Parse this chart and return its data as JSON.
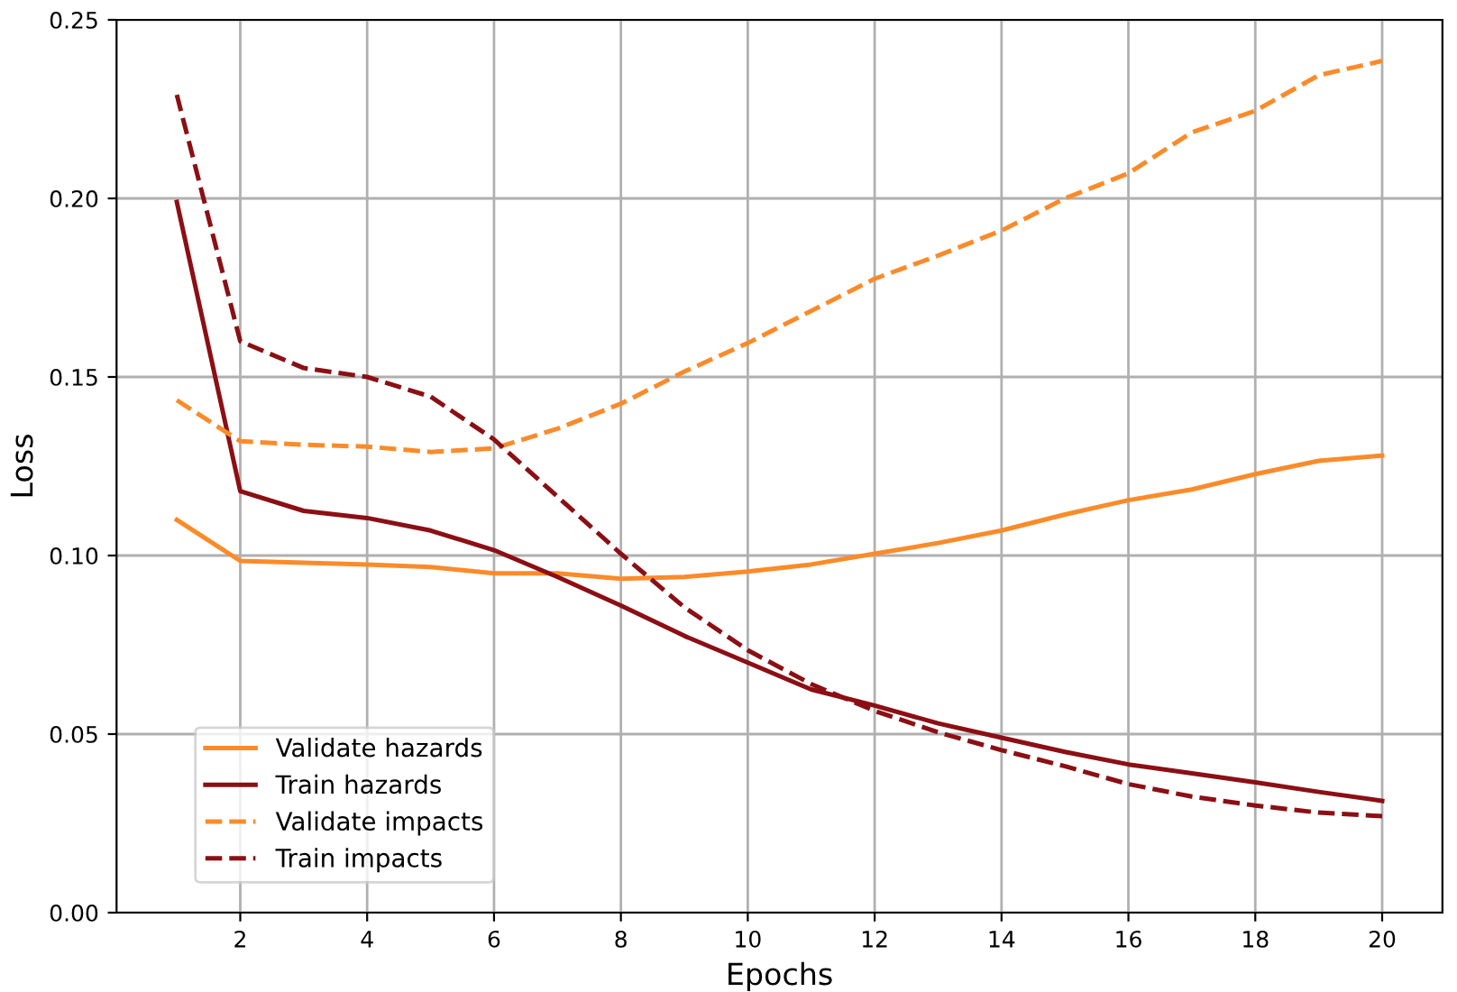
{
  "chart_data": {
    "type": "line",
    "xlabel": "Epochs",
    "ylabel": "Loss",
    "x": [
      1,
      2,
      3,
      4,
      5,
      6,
      7,
      8,
      9,
      10,
      11,
      12,
      13,
      14,
      15,
      16,
      17,
      18,
      19,
      20
    ],
    "xlim": [
      0.05,
      20.95
    ],
    "xticks": [
      2,
      4,
      6,
      8,
      10,
      12,
      14,
      16,
      18,
      20
    ],
    "ylim": [
      0,
      0.25
    ],
    "yticks": [
      {
        "value": 0,
        "label": "0.00"
      },
      {
        "value": 0.05,
        "label": "0.05"
      },
      {
        "value": 0.1,
        "label": "0.10"
      },
      {
        "value": 0.15,
        "label": "0.15"
      },
      {
        "value": 0.2,
        "label": "0.20"
      },
      {
        "value": 0.25,
        "label": "0.25"
      }
    ],
    "grid": true,
    "legend": "bottom left",
    "marker": "none",
    "series": [
      {
        "name": "Validate hazards",
        "color": "#fb8b2a",
        "line_style": "solid",
        "values": [
          0.11,
          0.0985,
          0.098,
          0.0975,
          0.0968,
          0.095,
          0.095,
          0.0935,
          0.094,
          0.0955,
          0.0975,
          0.1005,
          0.1035,
          0.107,
          0.1115,
          0.1155,
          0.1185,
          0.1228,
          0.1265,
          0.128
        ]
      },
      {
        "name": "Train hazards",
        "color": "#8b0f14",
        "line_style": "solid",
        "values": [
          0.199,
          0.118,
          0.1125,
          0.1105,
          0.107,
          0.1015,
          0.094,
          0.086,
          0.0775,
          0.07,
          0.0625,
          0.058,
          0.053,
          0.049,
          0.045,
          0.0415,
          0.039,
          0.0365,
          0.0338,
          0.0313
        ]
      },
      {
        "name": "Validate impacts",
        "color": "#fb8b2a",
        "line_style": "dashed",
        "values": [
          0.1435,
          0.132,
          0.131,
          0.1305,
          0.129,
          0.13,
          0.1355,
          0.1425,
          0.1515,
          0.1595,
          0.1685,
          0.1775,
          0.184,
          0.191,
          0.2,
          0.207,
          0.2185,
          0.2245,
          0.2345,
          0.2385
        ]
      },
      {
        "name": "Train impacts",
        "color": "#8b0f14",
        "line_style": "dashed",
        "values": [
          0.229,
          0.16,
          0.1525,
          0.15,
          0.1445,
          0.1325,
          0.1165,
          0.1005,
          0.0855,
          0.0735,
          0.064,
          0.0565,
          0.0505,
          0.0455,
          0.041,
          0.036,
          0.0325,
          0.03,
          0.028,
          0.027
        ]
      }
    ]
  }
}
